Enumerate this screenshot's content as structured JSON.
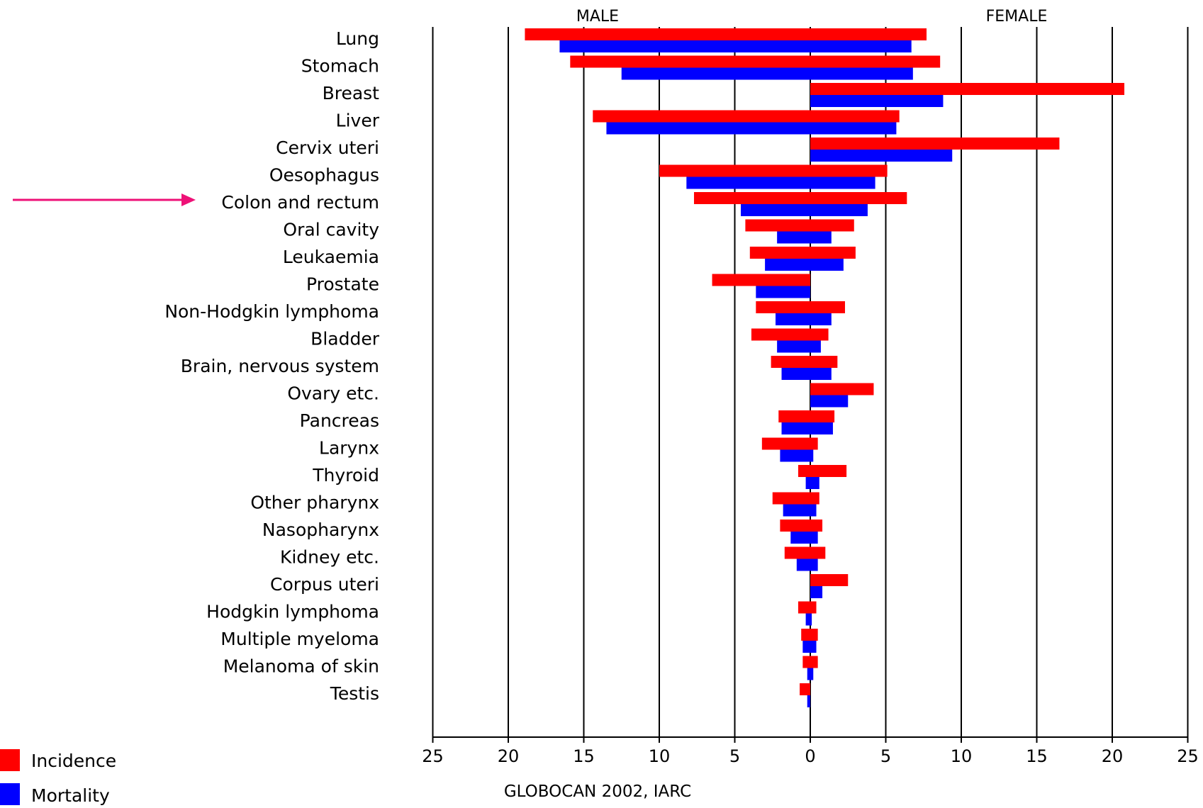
{
  "chart_data": {
    "type": "bar",
    "orientation": "horizontal",
    "layout": "back-to-back (population pyramid)",
    "left_group": "MALE",
    "right_group": "FEMALE",
    "source": "GLOBOCAN 2002, IARC",
    "categories": [
      "Lung",
      "Stomach",
      "Breast",
      "Liver",
      "Cervix uteri",
      "Oesophagus",
      "Colon and rectum",
      "Oral cavity",
      "Leukaemia",
      "Prostate",
      "Non-Hodgkin lymphoma",
      "Bladder",
      "Brain, nervous system",
      "Ovary etc.",
      "Pancreas",
      "Larynx",
      "Thyroid",
      "Other pharynx",
      "Nasopharynx",
      "Kidney etc.",
      "Corpus uteri",
      "Hodgkin lymphoma",
      "Multiple myeloma",
      "Melanoma of skin",
      "Testis"
    ],
    "highlighted_category": "Colon and rectum",
    "series": [
      {
        "name": "Incidence",
        "color": "#ff0000",
        "male": [
          18.9,
          15.9,
          0,
          14.4,
          0,
          10.0,
          7.7,
          4.3,
          4.0,
          6.5,
          3.6,
          3.9,
          2.6,
          0,
          2.1,
          3.2,
          0.8,
          2.5,
          2.0,
          1.7,
          0,
          0.8,
          0.6,
          0.5,
          0.7
        ],
        "female": [
          7.7,
          8.6,
          20.8,
          5.9,
          16.5,
          5.1,
          6.4,
          2.9,
          3.0,
          0,
          2.3,
          1.2,
          1.8,
          4.2,
          1.6,
          0.5,
          2.4,
          0.6,
          0.8,
          1.0,
          2.5,
          0.4,
          0.5,
          0.5,
          0
        ]
      },
      {
        "name": "Mortality",
        "color": "#0000ff",
        "male": [
          16.6,
          12.5,
          0,
          13.5,
          0,
          8.2,
          4.6,
          2.2,
          3.0,
          3.6,
          2.3,
          2.2,
          1.9,
          0,
          1.9,
          2.0,
          0.3,
          1.8,
          1.3,
          0.9,
          0,
          0.3,
          0.5,
          0.2,
          0.2
        ],
        "female": [
          6.7,
          6.8,
          8.8,
          5.7,
          9.4,
          4.3,
          3.8,
          1.4,
          2.2,
          0,
          1.4,
          0.7,
          1.4,
          2.5,
          1.5,
          0.2,
          0.6,
          0.4,
          0.5,
          0.5,
          0.8,
          0.1,
          0.4,
          0.2,
          0
        ]
      }
    ],
    "x_ticks": [
      "25",
      "20",
      "15",
      "10",
      "5",
      "0",
      "5",
      "10",
      "15",
      "20",
      "25"
    ],
    "xlim": [
      -25,
      25
    ],
    "grid": "vertical lines at every 5 units",
    "legend_position": "bottom-left",
    "arrow_color": "#ee1177"
  }
}
